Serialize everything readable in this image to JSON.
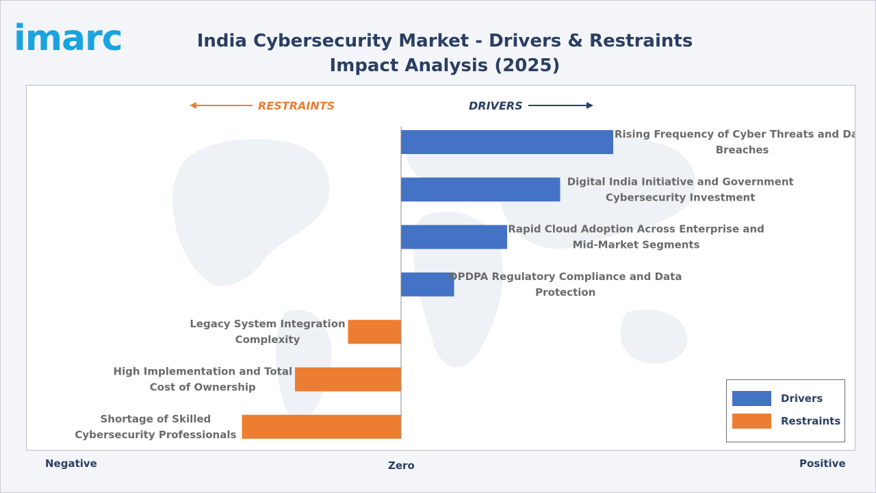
{
  "logo": {
    "text": "imarc"
  },
  "title": "India Cybersecurity Market - Drivers & Restraints Impact Analysis (2025)",
  "headers": {
    "restraints": "RESTRAINTS",
    "drivers": "DRIVERS"
  },
  "axis": {
    "negative": "Negative",
    "zero": "Zero",
    "positive": "Positive"
  },
  "legend": {
    "drivers": "Drivers",
    "restraints": "Restraints"
  },
  "colors": {
    "drivers": "#4472c4",
    "restraints": "#ed7d31",
    "title": "#2b3e63",
    "logo": "#1aa3e0",
    "label": "#6b6b6b"
  },
  "chart_data": {
    "type": "bar",
    "orientation": "horizontal",
    "title": "India Cybersecurity Market - Drivers & Restraints Impact Analysis (2025)",
    "xlabel": "",
    "ylabel": "",
    "xlim": [
      -7,
      17
    ],
    "grid": false,
    "legend_position": "bottom-right",
    "bars": [
      {
        "label": "Rising Frequency of Cyber Threats and Data Breaches",
        "value": 8,
        "category": "Drivers"
      },
      {
        "label": "Digital India Initiative and Government Cybersecurity Investment",
        "value": 6,
        "category": "Drivers"
      },
      {
        "label": "Rapid Cloud Adoption Across Enterprise and Mid-Market Segments",
        "value": 4,
        "category": "Drivers"
      },
      {
        "label": "DPDPA Regulatory Compliance and Data Protection",
        "value": 2,
        "category": "Drivers"
      },
      {
        "label": "Legacy System Integration Complexity",
        "value": -2,
        "category": "Restraints"
      },
      {
        "label": "High Implementation and Total Cost of Ownership",
        "value": -4,
        "category": "Restraints"
      },
      {
        "label": "Shortage of Skilled Cybersecurity Professionals",
        "value": -6,
        "category": "Restraints"
      }
    ]
  }
}
